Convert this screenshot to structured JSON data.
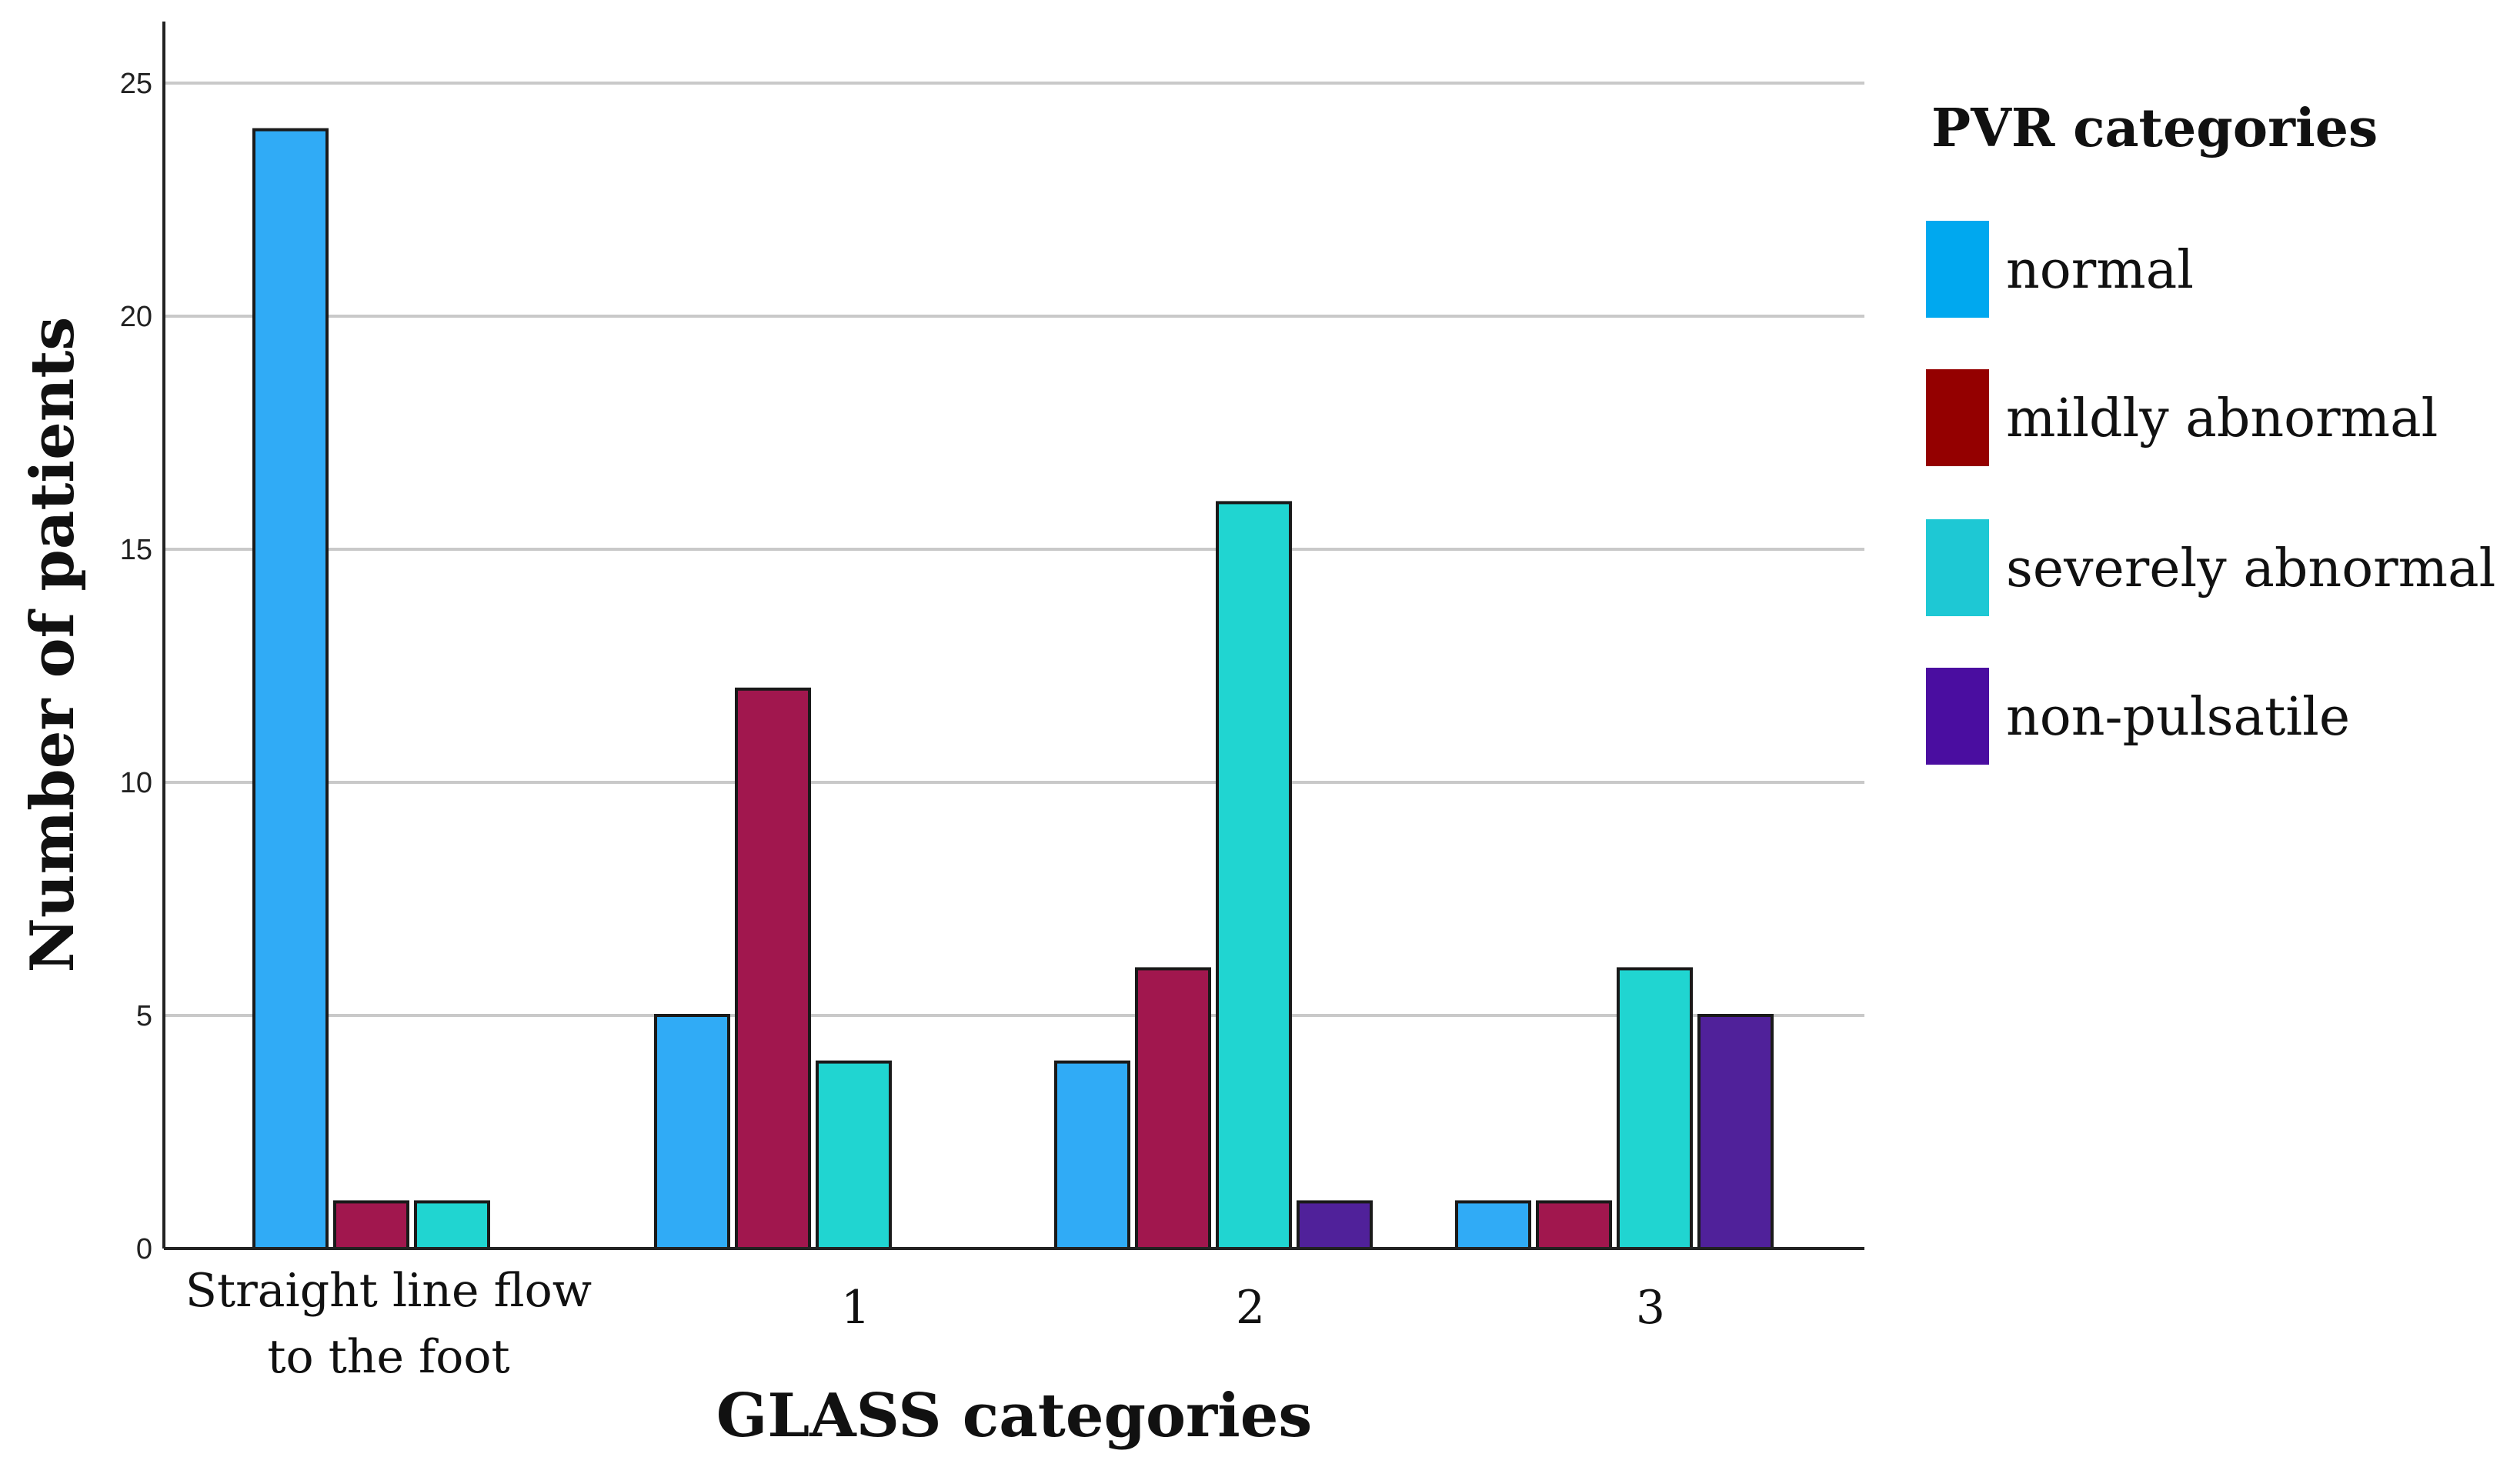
{
  "chart_data": {
    "type": "bar",
    "title": "",
    "xlabel": "GLASS categories",
    "ylabel": "Number of patients",
    "ylim": [
      0,
      26
    ],
    "yticks": [
      0,
      5,
      10,
      15,
      20,
      25
    ],
    "grid": true,
    "categories": [
      [
        "Straight line flow",
        "to the foot"
      ],
      [
        "1"
      ],
      [
        "2"
      ],
      [
        "3"
      ]
    ],
    "legend": {
      "title": "PVR categories",
      "placement": "right"
    },
    "series": [
      {
        "name": "normal",
        "color": "#30abf6",
        "swatch": "#00a8ef",
        "values": [
          24,
          5,
          4,
          1
        ]
      },
      {
        "name": "mildly abnormal",
        "color": "#a1174e",
        "swatch": "#940000",
        "values": [
          1,
          12,
          6,
          1
        ]
      },
      {
        "name": "severely abnormal",
        "color": "#20d5d1",
        "swatch": "#1ec8d4",
        "values": [
          1,
          4,
          16,
          6
        ]
      },
      {
        "name": "non-pulsatile",
        "color": "#50219a",
        "swatch": "#4a0da0",
        "values": [
          0,
          0,
          1,
          5
        ]
      }
    ]
  }
}
